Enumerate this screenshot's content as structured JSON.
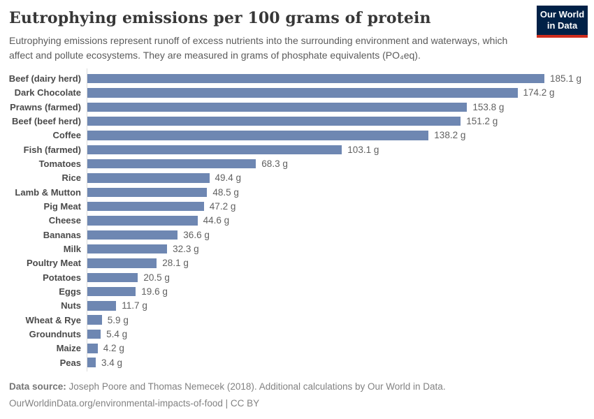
{
  "header": {
    "title": "Eutrophying emissions per 100 grams of protein",
    "subtitle": "Eutrophying emissions represent runoff of excess nutrients into the surrounding environment and waterways, which affect and pollute ecosystems. They are measured in grams of phosphate equivalents (PO₄eq).",
    "logo": {
      "line1": "Our World",
      "line2": "in Data"
    }
  },
  "chart_data": {
    "type": "bar",
    "orientation": "horizontal",
    "title": "Eutrophying emissions per 100 grams of protein",
    "unit": "g",
    "value_suffix": " g",
    "xlim": [
      0,
      185.1
    ],
    "grid": false,
    "legend": false,
    "bar_color": "#6e87b2",
    "categories": [
      "Beef (dairy herd)",
      "Dark Chocolate",
      "Prawns (farmed)",
      "Beef (beef herd)",
      "Coffee",
      "Fish (farmed)",
      "Tomatoes",
      "Rice",
      "Lamb & Mutton",
      "Pig Meat",
      "Cheese",
      "Bananas",
      "Milk",
      "Poultry Meat",
      "Potatoes",
      "Eggs",
      "Nuts",
      "Wheat & Rye",
      "Groundnuts",
      "Maize",
      "Peas"
    ],
    "values": [
      185.1,
      174.2,
      153.8,
      151.2,
      138.2,
      103.1,
      68.3,
      49.4,
      48.5,
      47.2,
      44.6,
      36.6,
      32.3,
      28.1,
      20.5,
      19.6,
      11.7,
      5.9,
      5.4,
      4.2,
      3.4
    ],
    "value_labels": [
      "185.1 g",
      "174.2 g",
      "153.8 g",
      "151.2 g",
      "138.2 g",
      "103.1 g",
      "68.3 g",
      "49.4 g",
      "48.5 g",
      "47.2 g",
      "44.6 g",
      "36.6 g",
      "32.3 g",
      "28.1 g",
      "20.5 g",
      "19.6 g",
      "11.7 g",
      "5.9 g",
      "5.4 g",
      "4.2 g",
      "3.4 g"
    ]
  },
  "footer": {
    "source_label": "Data source:",
    "source_text": " Joseph Poore and Thomas Nemecek (2018). Additional calculations by Our World in Data.",
    "license_line": "OurWorldinData.org/environmental-impacts-of-food | CC BY"
  },
  "colors": {
    "bar": "#6e87b2",
    "logo_navy": "#002147",
    "logo_red": "#cf2d1e",
    "axis_line": "#dcdcdc",
    "title_text": "#373737",
    "subtitle_text": "#5b5b5b",
    "label_text": "#4a4a4a",
    "value_text": "#616161",
    "footer_text": "#828282"
  }
}
